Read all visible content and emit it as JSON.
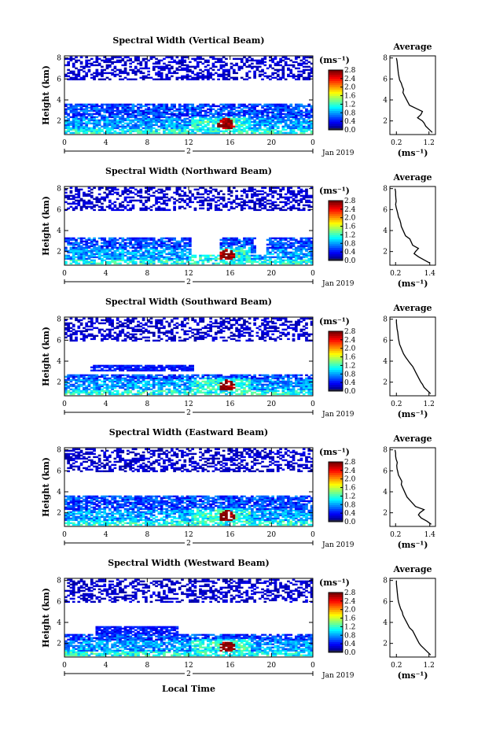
{
  "figure": {
    "date_label": "Jan 2019",
    "xlabel": "Local Time",
    "avg_title": "Average",
    "unit_label": "(ms⁻¹)",
    "height_label": "Height (km)"
  },
  "chart_data": [
    {
      "type": "heatmap",
      "title": "Spectral Width (Vertical Beam)",
      "x_ticks": [
        "0",
        "4",
        "8",
        "12",
        "16",
        "20",
        "0"
      ],
      "y_ticks": [
        "2",
        "4",
        "6",
        "8"
      ],
      "day_label": "2",
      "xlim": [
        0,
        24
      ],
      "ylim": [
        0.7,
        8.2
      ],
      "colorbar": {
        "ticks": [
          "0.0",
          "0.4",
          "0.8",
          "1.2",
          "1.6",
          "2.0",
          "2.4",
          "2.8"
        ],
        "range": [
          0,
          2.8
        ]
      },
      "gaps": [],
      "hotspot": {
        "x": 15.5,
        "y": 1.6
      },
      "upper_top": 3.5,
      "profile": {
        "title": "Average",
        "xlabel": "(ms⁻¹)",
        "x_ticks": [
          "0.2",
          "1.2"
        ],
        "xlim": [
          0.0,
          1.4
        ],
        "y_ticks": [
          "2",
          "4",
          "6",
          "8"
        ],
        "ylim": [
          0.7,
          8.2
        ],
        "heights": [
          0.9,
          1.2,
          1.5,
          1.8,
          2.0,
          2.3,
          2.6,
          2.9,
          3.2,
          3.5,
          3.8,
          4.1,
          4.4,
          4.7,
          5.0,
          5.3,
          5.6,
          5.9,
          6.2,
          6.5,
          6.8,
          7.1,
          7.4,
          7.7,
          8.0
        ],
        "values": [
          1.3,
          1.2,
          1.1,
          1.05,
          1.0,
          0.85,
          0.95,
          1.0,
          0.8,
          0.6,
          0.55,
          0.5,
          0.45,
          0.4,
          0.42,
          0.38,
          0.35,
          0.3,
          0.28,
          0.26,
          0.25,
          0.24,
          0.23,
          0.22,
          0.2
        ]
      }
    },
    {
      "type": "heatmap",
      "title": "Spectral Width (Northward Beam)",
      "x_ticks": [
        "0",
        "4",
        "8",
        "12",
        "16",
        "20",
        "0"
      ],
      "y_ticks": [
        "2",
        "4",
        "6",
        "8"
      ],
      "day_label": "2",
      "xlim": [
        0,
        24
      ],
      "ylim": [
        0.7,
        8.2
      ],
      "colorbar": {
        "ticks": [
          "0.0",
          "0.4",
          "0.8",
          "1.2",
          "1.6",
          "2.0",
          "2.4",
          "2.8"
        ],
        "range": [
          0,
          2.8
        ]
      },
      "gaps": [
        [
          12.2,
          15.0
        ],
        [
          18.5,
          19.3
        ]
      ],
      "hotspot": {
        "x": 15.6,
        "y": 1.6
      },
      "upper_top": 3.2,
      "profile": {
        "title": "Average",
        "xlabel": "(ms⁻¹)",
        "x_ticks": [
          "0.2",
          "1.4"
        ],
        "xlim": [
          0.0,
          1.6
        ],
        "y_ticks": [
          "2",
          "4",
          "6",
          "8"
        ],
        "ylim": [
          0.7,
          8.2
        ],
        "heights": [
          0.9,
          1.2,
          1.5,
          1.8,
          2.0,
          2.3,
          2.6,
          2.9,
          3.2,
          3.5,
          3.8,
          4.1,
          4.4,
          4.7,
          5.0,
          5.3,
          5.6,
          5.9,
          6.2,
          6.5,
          6.8,
          7.1,
          7.4,
          7.7,
          8.0
        ],
        "values": [
          1.4,
          1.2,
          1.0,
          0.85,
          0.9,
          1.0,
          0.8,
          0.75,
          0.7,
          0.55,
          0.5,
          0.45,
          0.4,
          0.38,
          0.35,
          0.3,
          0.28,
          0.25,
          0.22,
          0.2,
          0.22,
          0.21,
          0.2,
          0.2,
          0.18
        ]
      }
    },
    {
      "type": "heatmap",
      "title": "Spectral Width (Southward Beam)",
      "x_ticks": [
        "0",
        "4",
        "8",
        "12",
        "16",
        "20",
        "0"
      ],
      "y_ticks": [
        "2",
        "4",
        "6",
        "8"
      ],
      "day_label": "2",
      "xlim": [
        0,
        24
      ],
      "ylim": [
        0.7,
        8.2
      ],
      "colorbar": {
        "ticks": [
          "0.0",
          "0.4",
          "0.8",
          "1.2",
          "1.6",
          "2.0",
          "2.4",
          "2.8"
        ],
        "range": [
          0,
          2.8
        ]
      },
      "gaps": [],
      "hotspot": {
        "x": 15.6,
        "y": 1.6
      },
      "upper_top": 2.6,
      "mid_band": [
        2.3,
        12.3,
        3.0,
        3.6
      ],
      "profile": {
        "title": "Average",
        "xlabel": "(ms⁻¹)",
        "x_ticks": [
          "0.2",
          "1.2"
        ],
        "xlim": [
          0.0,
          1.4
        ],
        "y_ticks": [
          "2",
          "4",
          "6",
          "8"
        ],
        "ylim": [
          0.7,
          8.2
        ],
        "heights": [
          0.9,
          1.2,
          1.5,
          1.8,
          2.0,
          2.3,
          2.6,
          2.9,
          3.2,
          3.5,
          3.8,
          4.1,
          4.4,
          4.7,
          5.0,
          5.3,
          5.6,
          5.9,
          6.2,
          6.5,
          6.8,
          7.1,
          7.4,
          7.7,
          8.0
        ],
        "values": [
          1.25,
          1.15,
          1.05,
          1.0,
          0.95,
          0.9,
          0.85,
          0.8,
          0.75,
          0.7,
          0.62,
          0.55,
          0.48,
          0.42,
          0.38,
          0.34,
          0.3,
          0.28,
          0.26,
          0.25,
          0.24,
          0.22,
          0.21,
          0.2,
          0.2
        ]
      }
    },
    {
      "type": "heatmap",
      "title": "Spectral Width (Eastward Beam)",
      "x_ticks": [
        "0",
        "4",
        "8",
        "12",
        "16",
        "20",
        "0"
      ],
      "y_ticks": [
        "2",
        "4",
        "6",
        "8"
      ],
      "day_label": "2",
      "xlim": [
        0,
        24
      ],
      "ylim": [
        0.7,
        8.2
      ],
      "colorbar": {
        "ticks": [
          "0.0",
          "0.4",
          "0.8",
          "1.2",
          "1.6",
          "2.0",
          "2.4",
          "2.8"
        ],
        "range": [
          0,
          2.8
        ]
      },
      "gaps": [],
      "hotspot": {
        "x": 15.6,
        "y": 1.6
      },
      "upper_top": 3.5,
      "profile": {
        "title": "Average",
        "xlabel": "(ms⁻¹)",
        "x_ticks": [
          "0.2",
          "1.4"
        ],
        "xlim": [
          0.0,
          1.6
        ],
        "y_ticks": [
          "2",
          "4",
          "6",
          "8"
        ],
        "ylim": [
          0.7,
          8.2
        ],
        "heights": [
          0.9,
          1.2,
          1.5,
          1.8,
          2.0,
          2.3,
          2.6,
          2.9,
          3.2,
          3.5,
          3.8,
          4.1,
          4.4,
          4.7,
          5.0,
          5.3,
          5.6,
          5.9,
          6.2,
          6.5,
          6.8,
          7.1,
          7.4,
          7.7,
          8.0
        ],
        "values": [
          1.45,
          1.3,
          1.1,
          1.0,
          1.05,
          1.2,
          0.9,
          0.8,
          0.7,
          0.6,
          0.55,
          0.5,
          0.45,
          0.4,
          0.42,
          0.36,
          0.3,
          0.28,
          0.25,
          0.24,
          0.26,
          0.22,
          0.2,
          0.2,
          0.18
        ]
      }
    },
    {
      "type": "heatmap",
      "title": "Spectral Width (Westward Beam)",
      "x_ticks": [
        "0",
        "4",
        "8",
        "12",
        "16",
        "20",
        "0"
      ],
      "y_ticks": [
        "2",
        "4",
        "6",
        "8"
      ],
      "day_label": "2",
      "xlim": [
        0,
        24
      ],
      "ylim": [
        0.7,
        8.2
      ],
      "colorbar": {
        "ticks": [
          "0.0",
          "0.4",
          "0.8",
          "1.2",
          "1.6",
          "2.0",
          "2.4",
          "2.8"
        ],
        "range": [
          0,
          2.8
        ]
      },
      "gaps": [],
      "hotspot": {
        "x": 15.6,
        "y": 1.6
      },
      "upper_top": 2.8,
      "mid_band": [
        3.0,
        11.0,
        2.8,
        3.5
      ],
      "profile": {
        "title": "Average",
        "xlabel": "(ms⁻¹)",
        "x_ticks": [
          "0.2",
          "1.2"
        ],
        "xlim": [
          0.0,
          1.4
        ],
        "y_ticks": [
          "2",
          "4",
          "6",
          "8"
        ],
        "ylim": [
          0.7,
          8.2
        ],
        "heights": [
          0.9,
          1.2,
          1.5,
          1.8,
          2.0,
          2.3,
          2.6,
          2.9,
          3.2,
          3.5,
          3.8,
          4.1,
          4.4,
          4.7,
          5.0,
          5.3,
          5.6,
          5.9,
          6.2,
          6.5,
          6.8,
          7.1,
          7.4,
          7.7,
          8.0
        ],
        "values": [
          1.25,
          1.15,
          1.05,
          0.95,
          0.9,
          0.85,
          0.8,
          0.75,
          0.7,
          0.6,
          0.55,
          0.5,
          0.45,
          0.4,
          0.38,
          0.33,
          0.3,
          0.27,
          0.25,
          0.24,
          0.23,
          0.22,
          0.21,
          0.2,
          0.2
        ]
      }
    }
  ]
}
